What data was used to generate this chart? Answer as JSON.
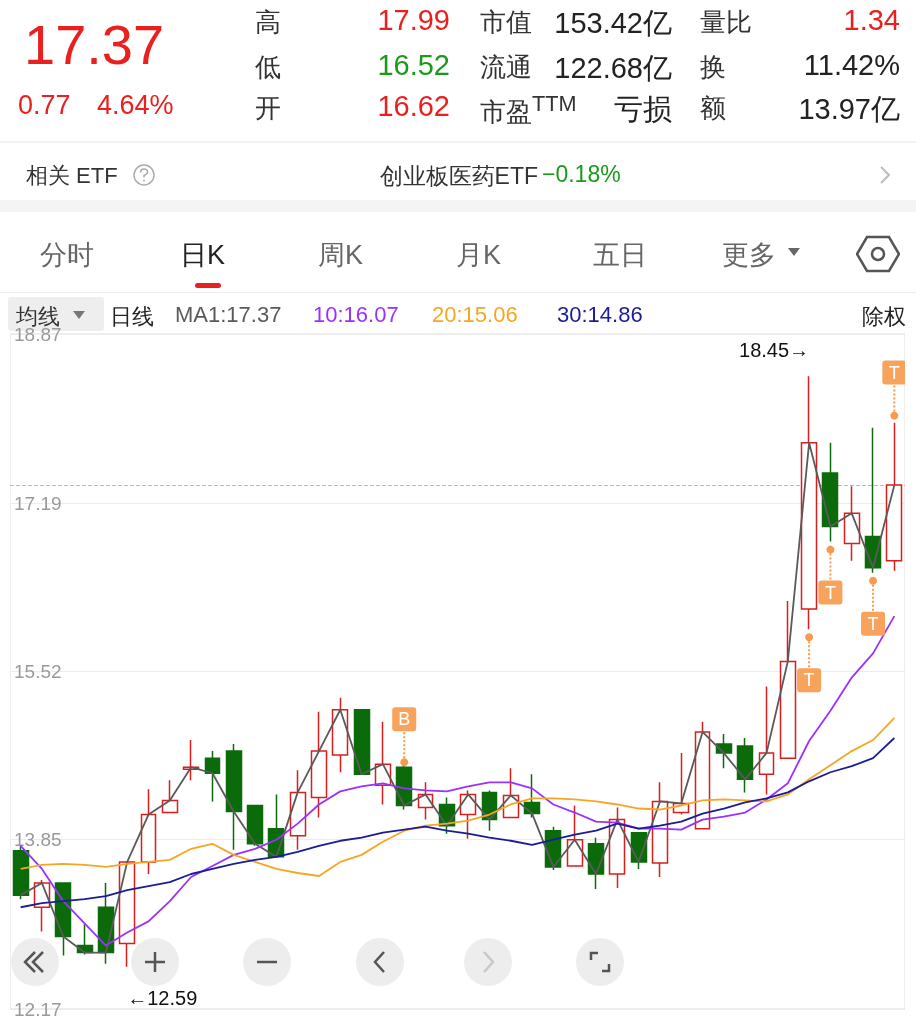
{
  "chart_data": [
    {
      "type": "other",
      "annotations": [
        "17.37",
        "0.77",
        "4.64%",
        "高",
        "17.99",
        "市值",
        "153.42亿",
        "量比",
        "1.34",
        "低",
        "16.52",
        "流通",
        "122.68亿",
        "换",
        "11.42%",
        "开",
        "16.62",
        "市盈$^{TTM}$",
        "亏损",
        "额",
        "13.97亿",
        "相关 ETF",
        "创业板医药ETF",
        "−0.18%",
        "分时",
        "日K",
        "周K",
        "月K",
        "五日",
        "更多"
      ]
    },
    {
      "type": "candlestick",
      "categories": [
        null,
        null,
        null,
        null,
        null,
        null,
        null,
        null,
        null,
        null,
        null,
        null,
        null,
        null,
        null,
        null,
        null,
        null,
        null,
        null,
        null,
        null,
        null,
        null,
        null,
        null,
        null,
        null,
        null,
        null,
        null,
        null,
        null,
        null,
        null,
        null,
        null,
        null,
        null,
        null,
        null,
        null
      ],
      "ohlc": [
        [
          13.74,
          13.79,
          13.26,
          13.3
        ],
        [
          13.18,
          13.45,
          12.94,
          13.42
        ],
        [
          13.42,
          13.42,
          12.7,
          12.89
        ],
        [
          12.8,
          13.01,
          12.71,
          12.73
        ],
        [
          13.18,
          13.42,
          12.62,
          12.73
        ],
        [
          12.82,
          13.63,
          12.59,
          13.63
        ],
        [
          13.63,
          14.35,
          13.51,
          14.1
        ],
        [
          14.12,
          14.44,
          14.12,
          14.24
        ],
        [
          14.55,
          14.84,
          14.44,
          14.57
        ],
        [
          14.66,
          14.73,
          14.23,
          14.51
        ],
        [
          14.73,
          14.8,
          13.75,
          14.13
        ],
        [
          14.19,
          14.19,
          13.79,
          13.81
        ],
        [
          13.96,
          14.3,
          13.68,
          13.68
        ],
        [
          13.89,
          14.54,
          13.75,
          14.32
        ],
        [
          14.27,
          15.12,
          14.07,
          14.73
        ],
        [
          14.69,
          15.26,
          14.52,
          15.14
        ],
        [
          15.14,
          15.14,
          14.5,
          14.5
        ],
        [
          14.39,
          15.02,
          14.2,
          14.6
        ],
        [
          14.57,
          14.6,
          14.15,
          14.19
        ],
        [
          14.17,
          14.42,
          14.05,
          14.3
        ],
        [
          14.2,
          14.27,
          13.91,
          13.99
        ],
        [
          14.1,
          14.34,
          13.86,
          14.3
        ],
        [
          14.32,
          14.34,
          13.94,
          14.05
        ],
        [
          14.07,
          14.56,
          14.07,
          14.29
        ],
        [
          14.22,
          14.5,
          14.07,
          14.11
        ],
        [
          13.94,
          13.98,
          13.55,
          13.58
        ],
        [
          13.59,
          14.19,
          13.59,
          13.85
        ],
        [
          13.81,
          13.87,
          13.36,
          13.51
        ],
        [
          13.51,
          14.17,
          13.37,
          14.05
        ],
        [
          13.92,
          13.92,
          13.56,
          13.63
        ],
        [
          13.62,
          14.42,
          13.48,
          14.23
        ],
        [
          14.12,
          14.71,
          14.1,
          14.21
        ],
        [
          13.96,
          15.02,
          13.96,
          14.92
        ],
        [
          14.8,
          14.9,
          14.56,
          14.71
        ],
        [
          14.78,
          14.86,
          14.32,
          14.45
        ],
        [
          14.5,
          15.37,
          14.3,
          14.71
        ],
        [
          14.66,
          16.22,
          14.66,
          15.62
        ],
        [
          16.14,
          18.45,
          15.94,
          17.79
        ],
        [
          17.49,
          17.79,
          16.81,
          16.96
        ],
        [
          16.79,
          17.36,
          16.62,
          17.09
        ],
        [
          16.86,
          17.94,
          16.5,
          16.55
        ],
        [
          16.62,
          17.99,
          16.52,
          17.37
        ]
      ],
      "series": [
        {
          "name": "MA1:17.37",
          "type": "line",
          "color": "#5a5a5a",
          "values": [
            13.3,
            13.42,
            12.89,
            12.73,
            12.73,
            13.63,
            14.1,
            14.24,
            14.57,
            14.51,
            14.13,
            13.81,
            13.68,
            14.32,
            14.73,
            15.14,
            14.5,
            14.6,
            14.19,
            14.3,
            13.99,
            14.3,
            14.05,
            14.29,
            14.11,
            13.58,
            13.85,
            13.51,
            14.05,
            13.63,
            14.23,
            14.21,
            14.92,
            14.71,
            14.45,
            14.71,
            15.62,
            17.79,
            16.96,
            17.09,
            16.55,
            17.37
          ]
        },
        {
          "name": "10:16.07",
          "type": "line",
          "color": "#9b30ff",
          "values": [
            13.79,
            13.56,
            13.24,
            13.02,
            12.8,
            12.93,
            13.04,
            13.24,
            13.48,
            13.59,
            13.7,
            13.76,
            13.85,
            14.01,
            14.2,
            14.33,
            14.38,
            14.41,
            14.36,
            14.34,
            14.33,
            14.38,
            14.42,
            14.42,
            14.36,
            14.2,
            14.12,
            14.03,
            14.02,
            13.96,
            13.96,
            13.95,
            14.05,
            14.08,
            14.12,
            14.25,
            14.41,
            14.83,
            15.13,
            15.46,
            15.7,
            16.07
          ]
        },
        {
          "name": "20:15.06",
          "type": "line",
          "color": "#f5a623",
          "values": [
            13.56,
            13.6,
            13.61,
            13.6,
            13.58,
            13.61,
            13.63,
            13.65,
            13.76,
            13.81,
            13.7,
            13.63,
            13.56,
            13.52,
            13.49,
            13.63,
            13.7,
            13.83,
            13.94,
            13.99,
            14.01,
            14.04,
            14.1,
            14.2,
            14.26,
            14.26,
            14.25,
            14.23,
            14.2,
            14.16,
            14.15,
            14.19,
            14.24,
            14.25,
            14.24,
            14.23,
            14.3,
            14.45,
            14.59,
            14.73,
            14.84,
            15.06
          ]
        },
        {
          "name": "30:14.86",
          "type": "line",
          "color": "#1c1c96",
          "values": [
            13.18,
            13.22,
            13.24,
            13.26,
            13.29,
            13.35,
            13.39,
            13.43,
            13.51,
            13.56,
            13.61,
            13.65,
            13.68,
            13.73,
            13.79,
            13.84,
            13.87,
            13.92,
            13.95,
            13.98,
            13.94,
            13.91,
            13.87,
            13.84,
            13.8,
            13.85,
            13.9,
            13.94,
            14.01,
            13.96,
            13.99,
            14.03,
            14.11,
            14.16,
            14.22,
            14.26,
            14.32,
            14.43,
            14.52,
            14.58,
            14.66,
            14.86
          ]
        }
      ],
      "ylim": [
        12.17,
        18.87
      ],
      "yticks": [
        12.17,
        13.85,
        15.52,
        17.19,
        18.87
      ],
      "grid": "y",
      "tick_labels": "y",
      "ref_lines": [
        {
          "axis": "y",
          "value": 17.37,
          "color": "#d9b38c",
          "line_style": "dashed"
        }
      ],
      "annotations": [
        "均线",
        "日线",
        "除权",
        "18.45→",
        "←12.59",
        {
          "text": "B",
          "y": 14.62
        },
        {
          "text": "T",
          "y": 15.86
        },
        {
          "text": "T",
          "y": 16.73
        },
        {
          "text": "T",
          "y": 16.42
        },
        {
          "text": "T",
          "y": 18.06
        }
      ]
    }
  ]
}
